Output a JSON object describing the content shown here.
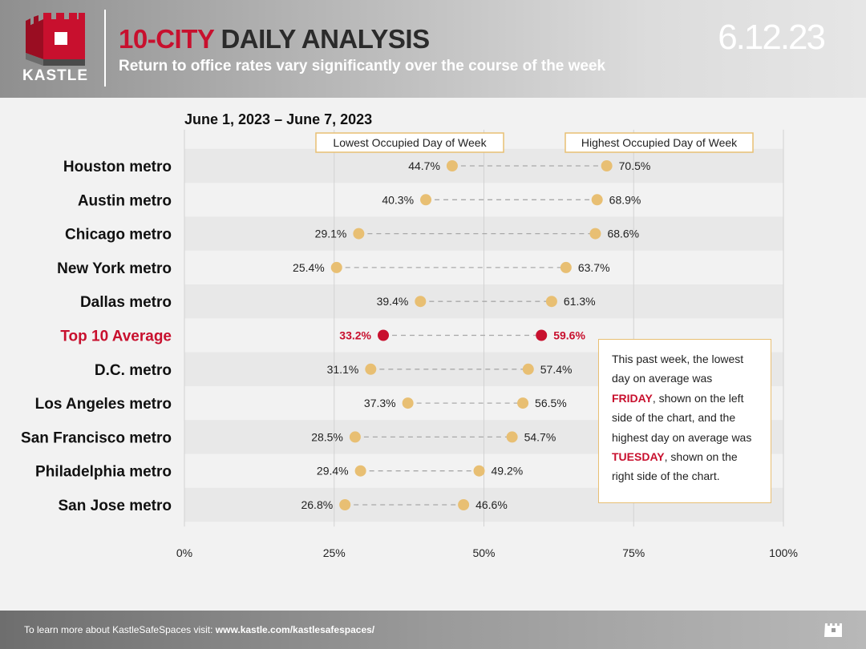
{
  "brand": {
    "logo_text": "KASTLE",
    "accent": "#c8102e"
  },
  "header": {
    "title_accent": "10-CITY",
    "title_rest": "DAILY ANALYSIS",
    "subtitle": "Return to office rates vary significantly over the course of the week",
    "date": "6.12.23"
  },
  "chart_data": {
    "type": "dumbbell",
    "period": "June 1, 2023 – June 7, 2023",
    "low_label": "Lowest Occupied Day of Week",
    "high_label": "Highest Occupied Day of Week",
    "x_ticks": [
      "0%",
      "25%",
      "50%",
      "75%",
      "100%"
    ],
    "xlim": [
      0,
      100
    ],
    "grid": true,
    "highlight_color": "#c8102e",
    "dot_color": "#e8bf73",
    "rows": [
      {
        "name": "Houston metro",
        "low": 44.7,
        "high": 70.5,
        "low_label": "44.7%",
        "high_label": "70.5%",
        "highlight": false
      },
      {
        "name": "Austin metro",
        "low": 40.3,
        "high": 68.9,
        "low_label": "40.3%",
        "high_label": "68.9%",
        "highlight": false
      },
      {
        "name": "Chicago metro",
        "low": 29.1,
        "high": 68.6,
        "low_label": "29.1%",
        "high_label": "68.6%",
        "highlight": false
      },
      {
        "name": "New York metro",
        "low": 25.4,
        "high": 63.7,
        "low_label": "25.4%",
        "high_label": "63.7%",
        "highlight": false
      },
      {
        "name": "Dallas metro",
        "low": 39.4,
        "high": 61.3,
        "low_label": "39.4%",
        "high_label": "61.3%",
        "highlight": false
      },
      {
        "name": "Top 10 Average",
        "low": 33.2,
        "high": 59.6,
        "low_label": "33.2%",
        "high_label": "59.6%",
        "highlight": true
      },
      {
        "name": "D.C. metro",
        "low": 31.1,
        "high": 57.4,
        "low_label": "31.1%",
        "high_label": "57.4%",
        "highlight": false
      },
      {
        "name": "Los Angeles metro",
        "low": 37.3,
        "high": 56.5,
        "low_label": "37.3%",
        "high_label": "56.5%",
        "highlight": false
      },
      {
        "name": "San Francisco metro",
        "low": 28.5,
        "high": 54.7,
        "low_label": "28.5%",
        "high_label": "54.7%",
        "highlight": false
      },
      {
        "name": "Philadelphia metro",
        "low": 29.4,
        "high": 49.2,
        "low_label": "29.4%",
        "high_label": "49.2%",
        "highlight": false
      },
      {
        "name": "San Jose metro",
        "low": 26.8,
        "high": 46.6,
        "low_label": "26.8%",
        "high_label": "46.6%",
        "highlight": false
      }
    ]
  },
  "callout": {
    "text1": "This past week, the lowest day on average was ",
    "low_day": "FRIDAY",
    "text2": ", shown on the left side of the chart, and the highest day on average was ",
    "high_day": "TUESDAY",
    "text3": ", shown on the right side of the chart."
  },
  "footer": {
    "text": "To learn more about KastleSafeSpaces visit: ",
    "link": "www.kastle.com/kastlesafespaces/"
  }
}
